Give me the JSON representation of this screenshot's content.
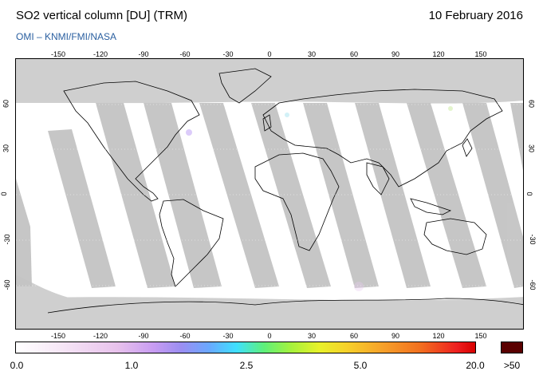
{
  "header": {
    "title": "SO2 vertical column [DU] (TRM)",
    "date": "10 February 2016",
    "source": "OMI  –  KNMI/FMI/NASA"
  },
  "map": {
    "longitude_ticks": [
      "-150",
      "-120",
      "-90",
      "-60",
      "-30",
      "0",
      "30",
      "60",
      "90",
      "120",
      "150"
    ],
    "latitude_ticks": [
      "60",
      "30",
      "0",
      "-30",
      "-60"
    ],
    "colors": {
      "no_data": "#cfcfcf",
      "land_no_data": "#8f8f8f",
      "orbit_gap": "#bdbdbd",
      "background": "#ffffff"
    }
  },
  "colorbar": {
    "labels": [
      "0.0",
      "1.0",
      "2.5",
      "5.0",
      "20.0",
      ">50"
    ],
    "unit": "DU",
    "overflow_color": "#5a0000"
  }
}
